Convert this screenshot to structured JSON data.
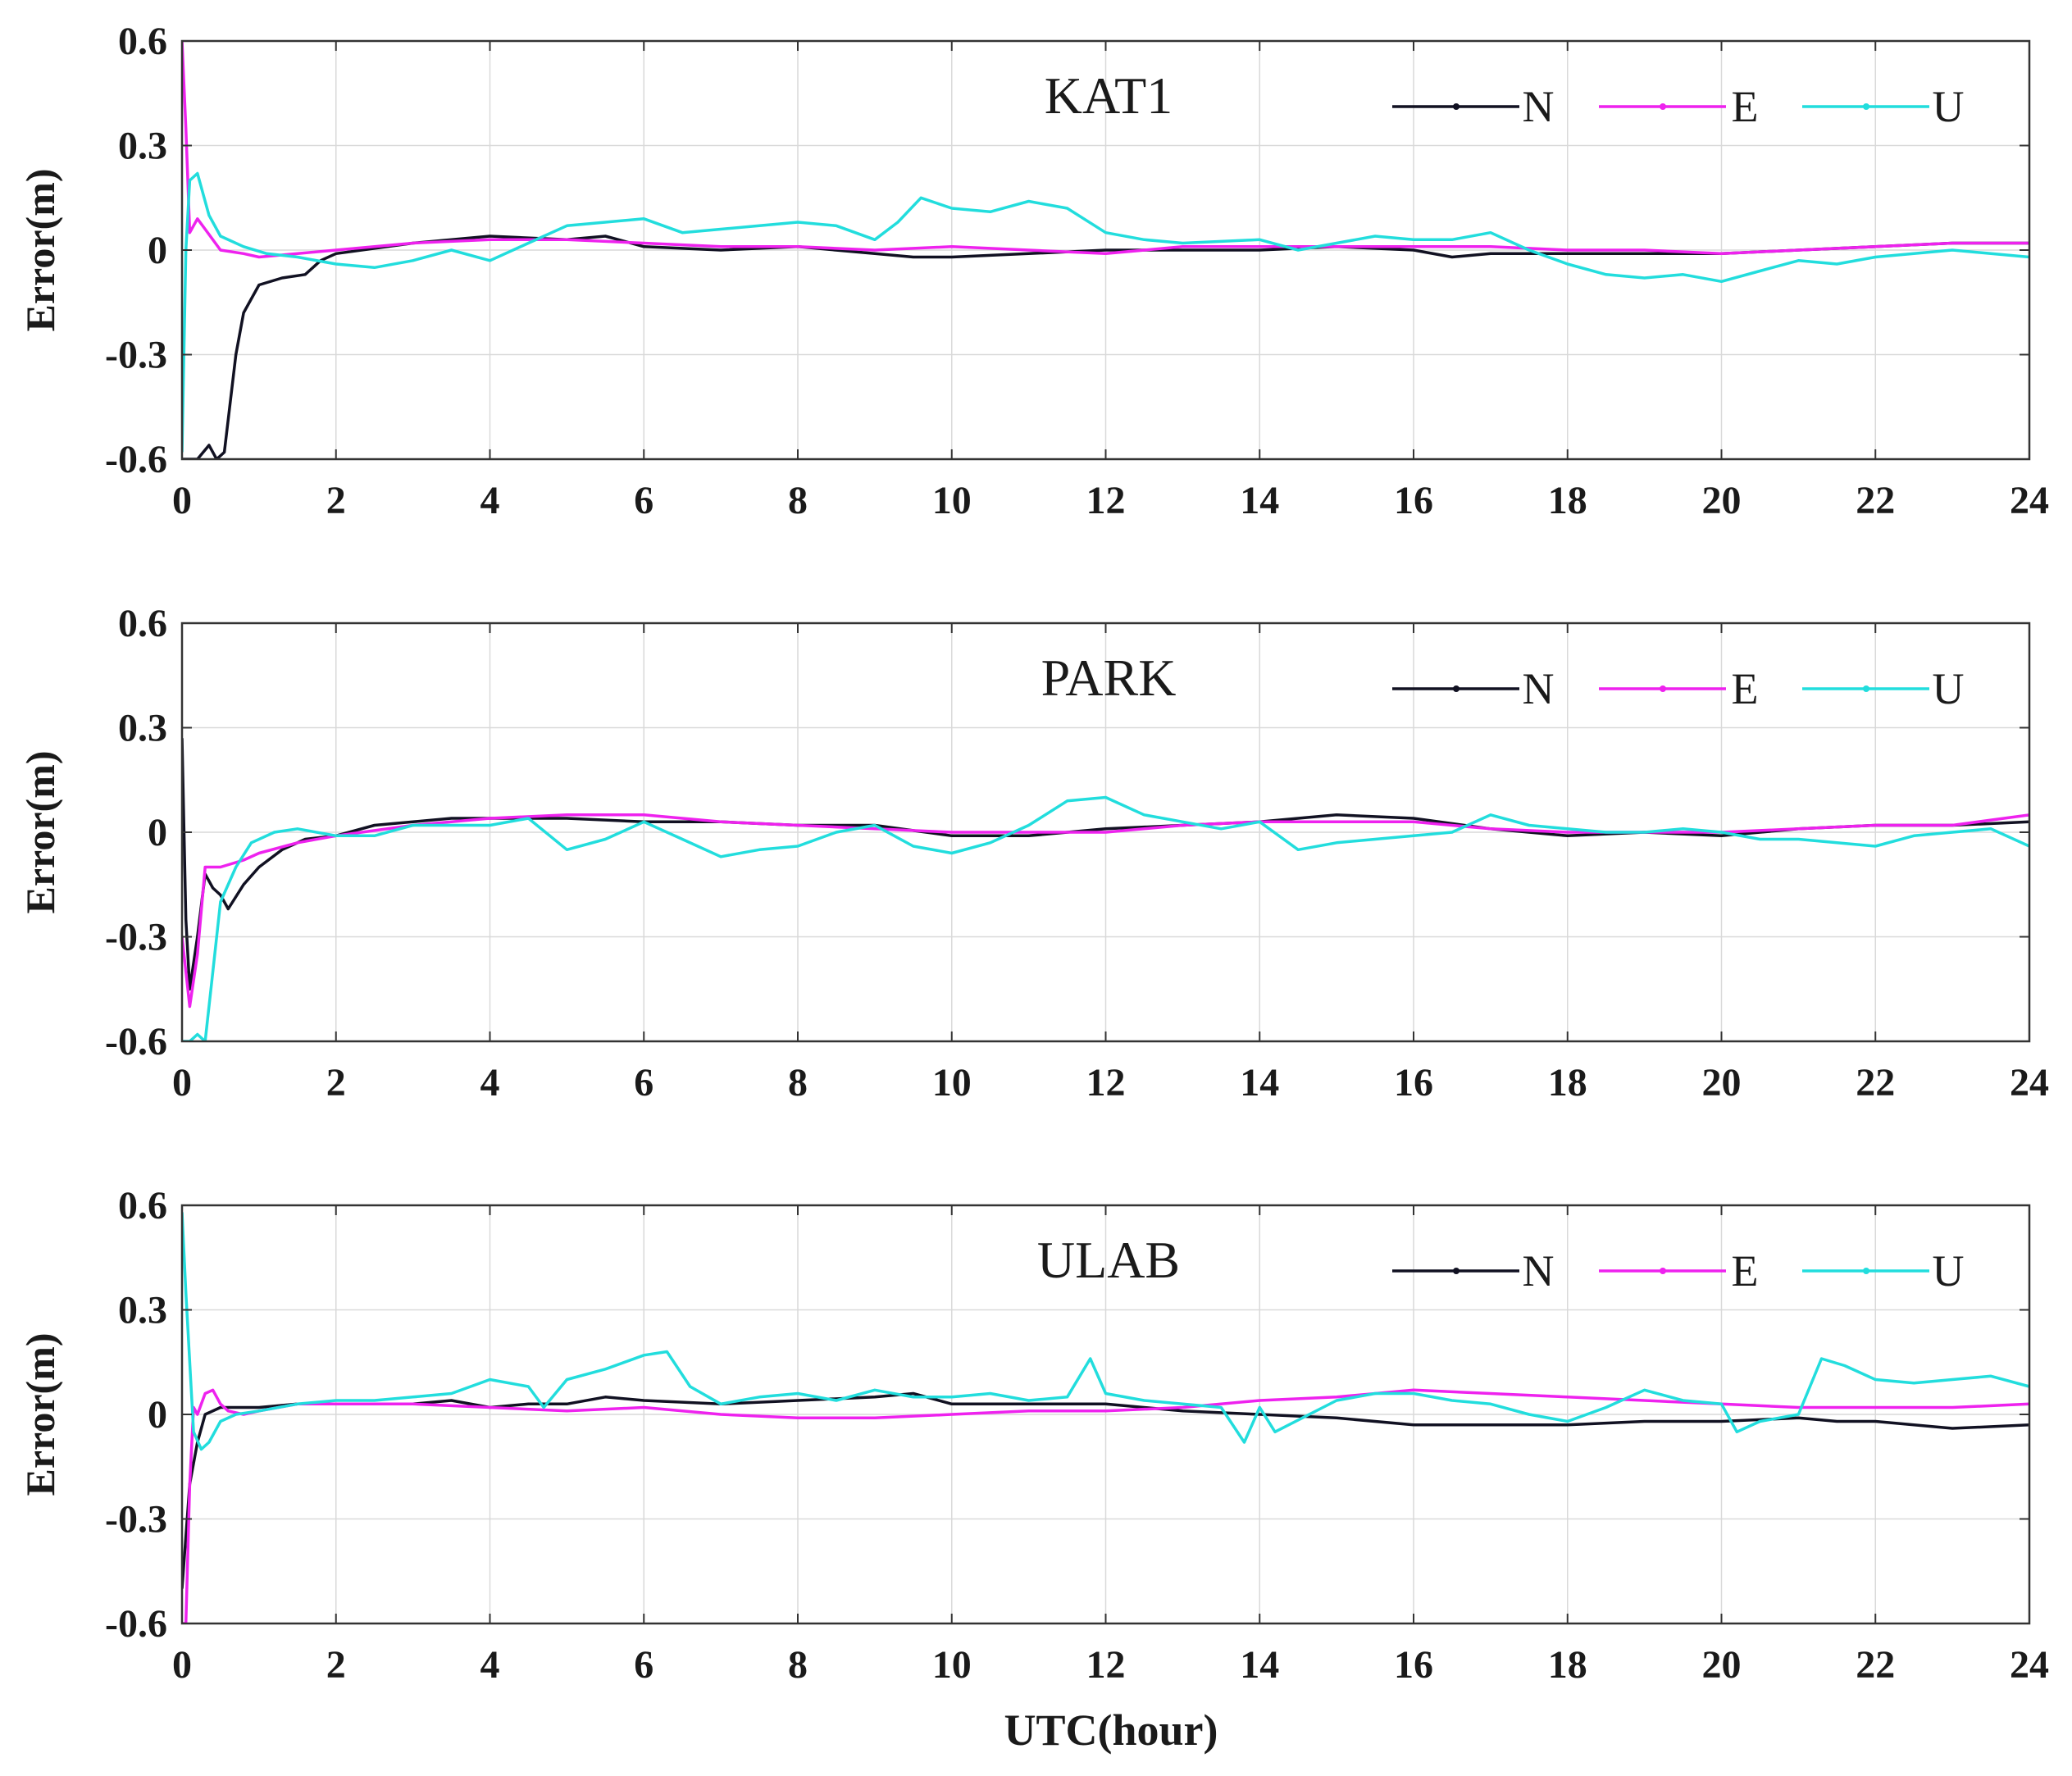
{
  "chart_data": [
    {
      "type": "line",
      "title": "KAT1",
      "xlabel": "",
      "ylabel": "Error(m)",
      "xlim": [
        0,
        24
      ],
      "ylim": [
        -0.6,
        0.6
      ],
      "xticks": [
        "0",
        "2",
        "4",
        "6",
        "8",
        "10",
        "12",
        "14",
        "16",
        "18",
        "20",
        "22",
        "24"
      ],
      "yticks": [
        "-0.6",
        "-0.3",
        "0",
        "0.3",
        "0.6"
      ],
      "legend_position": "top-right",
      "series": [
        {
          "name": "N",
          "color": "#111122",
          "x": [
            0,
            0.2,
            0.35,
            0.45,
            0.55,
            0.7,
            0.8,
            1.0,
            1.3,
            1.6,
            1.8,
            2.0,
            3,
            4,
            5,
            5.5,
            6,
            7,
            8,
            9,
            9.5,
            10,
            11,
            12,
            13,
            14,
            15,
            16,
            16.5,
            17,
            18,
            19,
            20,
            21,
            22,
            23,
            24
          ],
          "y": [
            -0.6,
            -0.6,
            -0.56,
            -0.6,
            -0.58,
            -0.3,
            -0.18,
            -0.1,
            -0.08,
            -0.07,
            -0.03,
            -0.01,
            0.02,
            0.04,
            0.03,
            0.04,
            0.01,
            0.0,
            0.01,
            -0.01,
            -0.02,
            -0.02,
            -0.01,
            0.0,
            0.0,
            0.0,
            0.01,
            0.0,
            -0.02,
            -0.01,
            -0.01,
            -0.01,
            -0.01,
            0.0,
            0.01,
            0.02,
            0.02
          ]
        },
        {
          "name": "E",
          "color": "#ee22ee",
          "x": [
            0,
            0.05,
            0.1,
            0.2,
            0.3,
            0.5,
            0.8,
            1.0,
            1.5,
            2,
            3,
            4,
            5,
            6,
            7,
            8,
            9,
            10,
            11,
            12,
            13,
            14,
            15,
            16,
            17,
            18,
            19,
            20,
            21,
            22,
            23,
            24
          ],
          "y": [
            0.6,
            0.35,
            0.05,
            0.09,
            0.06,
            0.0,
            -0.01,
            -0.02,
            -0.01,
            0.0,
            0.02,
            0.03,
            0.03,
            0.02,
            0.01,
            0.01,
            0.0,
            0.01,
            0.0,
            -0.01,
            0.01,
            0.01,
            0.01,
            0.01,
            0.01,
            0.0,
            0.0,
            -0.01,
            0.0,
            0.01,
            0.02,
            0.02
          ]
        },
        {
          "name": "U",
          "color": "#22dddd",
          "x": [
            0,
            0.05,
            0.1,
            0.2,
            0.35,
            0.5,
            0.8,
            1.1,
            1.5,
            2,
            2.5,
            3,
            3.5,
            4,
            4.5,
            5,
            5.5,
            6,
            6.5,
            7,
            7.5,
            8,
            8.5,
            9,
            9.3,
            9.6,
            10,
            10.5,
            11,
            11.5,
            12,
            12.5,
            13,
            14,
            14.5,
            15,
            15.5,
            16,
            16.5,
            17,
            17.5,
            18,
            18.5,
            19,
            19.5,
            20,
            20.5,
            21,
            21.5,
            22,
            22.5,
            23,
            23.5,
            24
          ],
          "y": [
            -0.58,
            0.0,
            0.2,
            0.22,
            0.1,
            0.04,
            0.01,
            -0.01,
            -0.02,
            -0.04,
            -0.05,
            -0.03,
            0.0,
            -0.03,
            0.02,
            0.07,
            0.08,
            0.09,
            0.05,
            0.06,
            0.07,
            0.08,
            0.07,
            0.03,
            0.08,
            0.15,
            0.12,
            0.11,
            0.14,
            0.12,
            0.05,
            0.03,
            0.02,
            0.03,
            0.0,
            0.02,
            0.04,
            0.03,
            0.03,
            0.05,
            0.0,
            -0.04,
            -0.07,
            -0.08,
            -0.07,
            -0.09,
            -0.06,
            -0.03,
            -0.04,
            -0.02,
            -0.01,
            0.0,
            -0.01,
            -0.02
          ]
        }
      ]
    },
    {
      "type": "line",
      "title": "PARK",
      "xlabel": "",
      "ylabel": "Error(m)",
      "xlim": [
        0,
        24
      ],
      "ylim": [
        -0.6,
        0.6
      ],
      "xticks": [
        "0",
        "2",
        "4",
        "6",
        "8",
        "10",
        "12",
        "14",
        "16",
        "18",
        "20",
        "22",
        "24"
      ],
      "yticks": [
        "-0.6",
        "-0.3",
        "0",
        "0.3",
        "0.6"
      ],
      "legend_position": "top-right",
      "series": [
        {
          "name": "N",
          "color": "#111122",
          "x": [
            0,
            0.05,
            0.1,
            0.2,
            0.3,
            0.4,
            0.5,
            0.6,
            0.8,
            1.0,
            1.3,
            1.6,
            2,
            2.5,
            3,
            3.5,
            4,
            5,
            6,
            7,
            8,
            9,
            10,
            11,
            12,
            13,
            14,
            14.5,
            15,
            16,
            17,
            18,
            19,
            20,
            21,
            22,
            23,
            24
          ],
          "y": [
            0.27,
            -0.25,
            -0.45,
            -0.3,
            -0.12,
            -0.16,
            -0.18,
            -0.22,
            -0.15,
            -0.1,
            -0.05,
            -0.02,
            -0.01,
            0.02,
            0.03,
            0.04,
            0.04,
            0.04,
            0.03,
            0.03,
            0.02,
            0.02,
            -0.01,
            -0.01,
            0.01,
            0.02,
            0.03,
            0.04,
            0.05,
            0.04,
            0.01,
            -0.01,
            0.0,
            -0.01,
            0.01,
            0.02,
            0.02,
            0.03
          ]
        },
        {
          "name": "E",
          "color": "#ee22ee",
          "x": [
            0,
            0.1,
            0.2,
            0.3,
            0.5,
            0.8,
            1.0,
            1.5,
            2,
            3,
            4,
            5,
            6,
            7,
            8,
            9,
            10,
            11,
            12,
            13,
            14,
            15,
            16,
            17,
            18,
            19,
            20,
            21,
            22,
            23,
            24
          ],
          "y": [
            -0.3,
            -0.5,
            -0.35,
            -0.1,
            -0.1,
            -0.08,
            -0.06,
            -0.03,
            -0.01,
            0.02,
            0.04,
            0.05,
            0.05,
            0.03,
            0.02,
            0.01,
            0.0,
            0.0,
            0.0,
            0.02,
            0.03,
            0.03,
            0.03,
            0.01,
            0.0,
            0.0,
            0.0,
            0.01,
            0.02,
            0.02,
            0.05
          ]
        },
        {
          "name": "U",
          "color": "#22dddd",
          "x": [
            0,
            0.1,
            0.2,
            0.3,
            0.4,
            0.5,
            0.7,
            0.9,
            1.2,
            1.5,
            2,
            2.5,
            3,
            3.5,
            4,
            4.5,
            5,
            5.5,
            6,
            6.5,
            7,
            7.5,
            8,
            8.5,
            9,
            9.5,
            10,
            10.5,
            11,
            11.5,
            12,
            12.5,
            13,
            13.5,
            14,
            14.5,
            15,
            15.5,
            16,
            16.5,
            17,
            17.5,
            18,
            18.5,
            19,
            19.5,
            20,
            20.5,
            21,
            21.5,
            22,
            22.5,
            23,
            23.5,
            24
          ],
          "y": [
            -0.6,
            -0.6,
            -0.58,
            -0.6,
            -0.4,
            -0.2,
            -0.1,
            -0.03,
            0.0,
            0.01,
            -0.01,
            -0.01,
            0.02,
            0.02,
            0.02,
            0.04,
            -0.05,
            -0.02,
            0.03,
            -0.02,
            -0.07,
            -0.05,
            -0.04,
            0.0,
            0.02,
            -0.04,
            -0.06,
            -0.03,
            0.02,
            0.09,
            0.1,
            0.05,
            0.03,
            0.01,
            0.03,
            -0.05,
            -0.03,
            -0.02,
            -0.01,
            0.0,
            0.05,
            0.02,
            0.01,
            0.0,
            0.0,
            0.01,
            0.0,
            -0.02,
            -0.02,
            -0.03,
            -0.04,
            -0.01,
            0.0,
            0.01,
            -0.04
          ]
        }
      ]
    },
    {
      "type": "line",
      "title": "ULAB",
      "xlabel": "UTC(hour)",
      "ylabel": "Error(m)",
      "xlim": [
        0,
        24
      ],
      "ylim": [
        -0.6,
        0.6
      ],
      "xticks": [
        "0",
        "2",
        "4",
        "6",
        "8",
        "10",
        "12",
        "14",
        "16",
        "18",
        "20",
        "22",
        "24"
      ],
      "yticks": [
        "-0.6",
        "-0.3",
        "0",
        "0.3",
        "0.6"
      ],
      "legend_position": "top-right",
      "series": [
        {
          "name": "N",
          "color": "#111122",
          "x": [
            0,
            0.05,
            0.1,
            0.2,
            0.3,
            0.5,
            0.8,
            1.0,
            1.5,
            2,
            3,
            3.5,
            4,
            4.5,
            5,
            5.5,
            6,
            7,
            8,
            9,
            9.5,
            10,
            11,
            12,
            13,
            14,
            15,
            16,
            17,
            18,
            19,
            20,
            21,
            21.5,
            22,
            23,
            24
          ],
          "y": [
            -0.5,
            -0.35,
            -0.2,
            -0.08,
            0.0,
            0.02,
            0.02,
            0.02,
            0.03,
            0.03,
            0.03,
            0.04,
            0.02,
            0.03,
            0.03,
            0.05,
            0.04,
            0.03,
            0.04,
            0.05,
            0.06,
            0.03,
            0.03,
            0.03,
            0.01,
            0.0,
            -0.01,
            -0.03,
            -0.03,
            -0.03,
            -0.02,
            -0.02,
            -0.01,
            -0.02,
            -0.02,
            -0.04,
            -0.03
          ]
        },
        {
          "name": "E",
          "color": "#ee22ee",
          "x": [
            0,
            0.05,
            0.1,
            0.15,
            0.2,
            0.3,
            0.4,
            0.5,
            0.6,
            0.8,
            1.0,
            1.5,
            2,
            3,
            4,
            5,
            6,
            7,
            8,
            9,
            10,
            11,
            12,
            13,
            14,
            15,
            16,
            17,
            18,
            19,
            20,
            21,
            22,
            23,
            24
          ],
          "y": [
            -0.6,
            -0.6,
            -0.2,
            0.02,
            0.0,
            0.06,
            0.07,
            0.03,
            0.01,
            0.0,
            0.01,
            0.03,
            0.03,
            0.03,
            0.02,
            0.01,
            0.02,
            0.0,
            -0.01,
            -0.01,
            0.0,
            0.01,
            0.01,
            0.02,
            0.04,
            0.05,
            0.07,
            0.06,
            0.05,
            0.04,
            0.03,
            0.02,
            0.02,
            0.02,
            0.03
          ]
        },
        {
          "name": "U",
          "color": "#22dddd",
          "x": [
            0,
            0.05,
            0.1,
            0.15,
            0.25,
            0.35,
            0.5,
            0.7,
            1.0,
            1.5,
            2,
            2.5,
            3,
            3.5,
            4,
            4.5,
            4.7,
            5,
            5.5,
            6,
            6.3,
            6.6,
            7,
            7.5,
            8,
            8.5,
            9,
            9.5,
            10,
            10.5,
            11,
            11.5,
            11.8,
            12,
            12.5,
            13,
            13.5,
            13.8,
            14,
            14.2,
            15,
            15.5,
            16,
            16.5,
            17,
            17.5,
            18,
            18.5,
            19,
            19.5,
            20,
            20.2,
            20.5,
            21,
            21.3,
            21.6,
            22,
            22.5,
            23,
            23.5,
            24
          ],
          "y": [
            0.58,
            0.35,
            0.15,
            -0.05,
            -0.1,
            -0.08,
            -0.02,
            0.0,
            0.01,
            0.03,
            0.04,
            0.04,
            0.05,
            0.06,
            0.1,
            0.08,
            0.02,
            0.1,
            0.13,
            0.17,
            0.18,
            0.08,
            0.03,
            0.05,
            0.06,
            0.04,
            0.07,
            0.05,
            0.05,
            0.06,
            0.04,
            0.05,
            0.16,
            0.06,
            0.04,
            0.03,
            0.02,
            -0.08,
            0.02,
            -0.05,
            0.04,
            0.06,
            0.06,
            0.04,
            0.03,
            0.0,
            -0.02,
            0.02,
            0.07,
            0.04,
            0.03,
            -0.05,
            -0.02,
            0.0,
            0.16,
            0.14,
            0.1,
            0.09,
            0.1,
            0.11,
            0.08
          ]
        }
      ]
    }
  ]
}
